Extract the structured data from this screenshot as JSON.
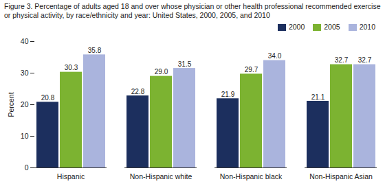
{
  "chart_data": {
    "type": "bar",
    "title": "Figure 3. Percentage of adults aged 18 and over whose physician or other health professional recommended exercise or physical activity, by race/ethnicity and year: United States, 2000, 2005, and 2010",
    "y_label": "Percent",
    "categories": [
      "Hispanic",
      "Non-Hispanic white",
      "Non-Hispanic black",
      "Non-Hispanic Asian"
    ],
    "series": [
      {
        "name": "2000",
        "color": "#1c2f5e",
        "values": [
          20.8,
          22.8,
          21.9,
          21.1
        ],
        "value_labels": [
          "20.8",
          "22.8",
          "21.9",
          "21.1"
        ]
      },
      {
        "name": "2005",
        "color": "#7cb331",
        "values": [
          30.3,
          29.0,
          29.7,
          32.7
        ],
        "value_labels": [
          "30.3",
          "29.0",
          "29.7",
          "32.7"
        ]
      },
      {
        "name": "2010",
        "color": "#aab4dd",
        "values": [
          35.8,
          31.5,
          34.0,
          32.7
        ],
        "value_labels": [
          "35.8",
          "31.5",
          "34.0",
          "32.7"
        ]
      }
    ],
    "ylim": [
      0,
      40
    ],
    "yticks": [
      0,
      10,
      20,
      30,
      40
    ],
    "grid": false,
    "legend": "top-right",
    "data_labels": true
  }
}
